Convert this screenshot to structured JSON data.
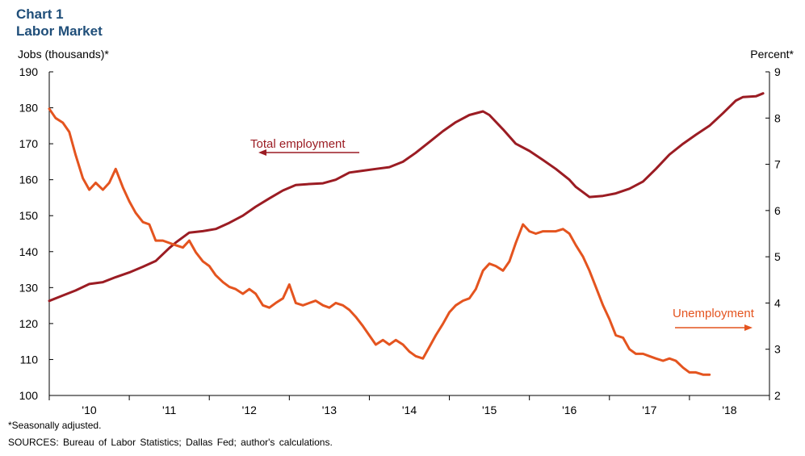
{
  "chart_title_line1": "Chart 1",
  "chart_title_line2": "Labor Market",
  "footnote": "*Seasonally adjusted.",
  "sources": "SOURCES: Bureau of Labor Statistics; Dallas Fed; author's calculations.",
  "colors": {
    "employment": "#9b1c23",
    "unemployment": "#e4541f",
    "title": "#1f4e79"
  },
  "chart_data": {
    "type": "line",
    "ylabel": "Jobs (thousands)*",
    "y2label": "Percent*",
    "ylim": [
      100,
      190
    ],
    "y2lim": [
      2,
      9
    ],
    "yticks": [
      100,
      110,
      120,
      130,
      140,
      150,
      160,
      170,
      180,
      190
    ],
    "y2ticks": [
      2,
      3,
      4,
      5,
      6,
      7,
      8,
      9
    ],
    "xlim": [
      2009.5,
      2018.5
    ],
    "xtick_labels": [
      {
        "x": 2010.0,
        "label": "'10"
      },
      {
        "x": 2011.0,
        "label": "'11"
      },
      {
        "x": 2012.0,
        "label": "'12"
      },
      {
        "x": 2013.0,
        "label": "'13"
      },
      {
        "x": 2014.0,
        "label": "'14"
      },
      {
        "x": 2015.0,
        "label": "'15"
      },
      {
        "x": 2016.0,
        "label": "'16"
      },
      {
        "x": 2017.0,
        "label": "'17"
      },
      {
        "x": 2018.0,
        "label": "'18"
      }
    ],
    "grid": false,
    "annotations": [
      {
        "text": "Total employment",
        "series": "employment",
        "arrow": "left"
      },
      {
        "text": "Unemployment",
        "series": "unemployment",
        "arrow": "right"
      }
    ],
    "series": [
      {
        "key": "employment",
        "axis": "left",
        "points": [
          [
            2009.5,
            126.3
          ],
          [
            2009.67,
            127.8
          ],
          [
            2009.83,
            129.2
          ],
          [
            2010.0,
            131.0
          ],
          [
            2010.17,
            131.5
          ],
          [
            2010.33,
            132.9
          ],
          [
            2010.5,
            134.2
          ],
          [
            2010.67,
            135.8
          ],
          [
            2010.83,
            137.4
          ],
          [
            2011.0,
            141.0
          ],
          [
            2011.08,
            142.5
          ],
          [
            2011.25,
            145.3
          ],
          [
            2011.42,
            145.7
          ],
          [
            2011.58,
            146.3
          ],
          [
            2011.75,
            148.0
          ],
          [
            2011.92,
            150.0
          ],
          [
            2012.08,
            152.5
          ],
          [
            2012.25,
            154.8
          ],
          [
            2012.42,
            157.0
          ],
          [
            2012.58,
            158.5
          ],
          [
            2012.75,
            158.8
          ],
          [
            2012.92,
            159.0
          ],
          [
            2013.08,
            160.0
          ],
          [
            2013.25,
            162.0
          ],
          [
            2013.42,
            162.5
          ],
          [
            2013.58,
            163.0
          ],
          [
            2013.75,
            163.5
          ],
          [
            2013.92,
            165.0
          ],
          [
            2014.08,
            167.5
          ],
          [
            2014.25,
            170.5
          ],
          [
            2014.42,
            173.5
          ],
          [
            2014.58,
            176.0
          ],
          [
            2014.75,
            178.0
          ],
          [
            2014.92,
            179.0
          ],
          [
            2015.0,
            178.0
          ],
          [
            2015.17,
            174.0
          ],
          [
            2015.33,
            170.0
          ],
          [
            2015.5,
            168.0
          ],
          [
            2015.67,
            165.5
          ],
          [
            2015.83,
            163.0
          ],
          [
            2016.0,
            160.0
          ],
          [
            2016.08,
            158.0
          ],
          [
            2016.25,
            155.2
          ],
          [
            2016.42,
            155.5
          ],
          [
            2016.58,
            156.2
          ],
          [
            2016.75,
            157.5
          ],
          [
            2016.92,
            159.5
          ],
          [
            2017.08,
            163.0
          ],
          [
            2017.25,
            167.0
          ],
          [
            2017.42,
            170.0
          ],
          [
            2017.58,
            172.5
          ],
          [
            2017.75,
            175.0
          ],
          [
            2017.92,
            178.5
          ],
          [
            2018.08,
            182.0
          ],
          [
            2018.17,
            183.0
          ],
          [
            2018.33,
            183.2
          ],
          [
            2018.42,
            184.0
          ]
        ]
      },
      {
        "key": "unemployment",
        "axis": "right",
        "points": [
          [
            2009.5,
            8.2
          ],
          [
            2009.58,
            8.0
          ],
          [
            2009.67,
            7.9
          ],
          [
            2009.75,
            7.7
          ],
          [
            2009.83,
            7.2
          ],
          [
            2009.92,
            6.7
          ],
          [
            2010.0,
            6.45
          ],
          [
            2010.08,
            6.6
          ],
          [
            2010.17,
            6.45
          ],
          [
            2010.25,
            6.6
          ],
          [
            2010.33,
            6.9
          ],
          [
            2010.42,
            6.5
          ],
          [
            2010.5,
            6.2
          ],
          [
            2010.58,
            5.95
          ],
          [
            2010.67,
            5.75
          ],
          [
            2010.75,
            5.7
          ],
          [
            2010.83,
            5.35
          ],
          [
            2010.92,
            5.35
          ],
          [
            2011.0,
            5.3
          ],
          [
            2011.08,
            5.25
          ],
          [
            2011.17,
            5.2
          ],
          [
            2011.25,
            5.35
          ],
          [
            2011.33,
            5.1
          ],
          [
            2011.42,
            4.9
          ],
          [
            2011.5,
            4.8
          ],
          [
            2011.58,
            4.6
          ],
          [
            2011.67,
            4.45
          ],
          [
            2011.75,
            4.35
          ],
          [
            2011.83,
            4.3
          ],
          [
            2011.92,
            4.2
          ],
          [
            2012.0,
            4.3
          ],
          [
            2012.08,
            4.2
          ],
          [
            2012.17,
            3.95
          ],
          [
            2012.25,
            3.9
          ],
          [
            2012.33,
            4.0
          ],
          [
            2012.42,
            4.1
          ],
          [
            2012.5,
            4.4
          ],
          [
            2012.58,
            4.0
          ],
          [
            2012.67,
            3.95
          ],
          [
            2012.75,
            4.0
          ],
          [
            2012.83,
            4.05
          ],
          [
            2012.92,
            3.95
          ],
          [
            2013.0,
            3.9
          ],
          [
            2013.08,
            4.0
          ],
          [
            2013.17,
            3.95
          ],
          [
            2013.25,
            3.85
          ],
          [
            2013.33,
            3.7
          ],
          [
            2013.42,
            3.5
          ],
          [
            2013.5,
            3.3
          ],
          [
            2013.58,
            3.1
          ],
          [
            2013.67,
            3.2
          ],
          [
            2013.75,
            3.1
          ],
          [
            2013.83,
            3.2
          ],
          [
            2013.92,
            3.1
          ],
          [
            2014.0,
            2.95
          ],
          [
            2014.08,
            2.85
          ],
          [
            2014.17,
            2.8
          ],
          [
            2014.25,
            3.05
          ],
          [
            2014.33,
            3.3
          ],
          [
            2014.42,
            3.55
          ],
          [
            2014.5,
            3.8
          ],
          [
            2014.58,
            3.95
          ],
          [
            2014.67,
            4.05
          ],
          [
            2014.75,
            4.1
          ],
          [
            2014.83,
            4.3
          ],
          [
            2014.92,
            4.7
          ],
          [
            2015.0,
            4.85
          ],
          [
            2015.08,
            4.8
          ],
          [
            2015.17,
            4.7
          ],
          [
            2015.25,
            4.9
          ],
          [
            2015.33,
            5.3
          ],
          [
            2015.42,
            5.7
          ],
          [
            2015.5,
            5.55
          ],
          [
            2015.58,
            5.5
          ],
          [
            2015.67,
            5.55
          ],
          [
            2015.75,
            5.55
          ],
          [
            2015.83,
            5.55
          ],
          [
            2015.92,
            5.6
          ],
          [
            2016.0,
            5.5
          ],
          [
            2016.08,
            5.25
          ],
          [
            2016.17,
            5.0
          ],
          [
            2016.25,
            4.7
          ],
          [
            2016.33,
            4.35
          ],
          [
            2016.42,
            3.95
          ],
          [
            2016.5,
            3.65
          ],
          [
            2016.58,
            3.3
          ],
          [
            2016.67,
            3.25
          ],
          [
            2016.75,
            3.0
          ],
          [
            2016.83,
            2.9
          ],
          [
            2016.92,
            2.9
          ],
          [
            2017.0,
            2.85
          ],
          [
            2017.08,
            2.8
          ],
          [
            2017.17,
            2.75
          ],
          [
            2017.25,
            2.8
          ],
          [
            2017.33,
            2.75
          ],
          [
            2017.42,
            2.6
          ],
          [
            2017.5,
            2.5
          ],
          [
            2017.58,
            2.5
          ],
          [
            2017.67,
            2.45
          ],
          [
            2017.75,
            2.45
          ]
        ]
      }
    ]
  }
}
